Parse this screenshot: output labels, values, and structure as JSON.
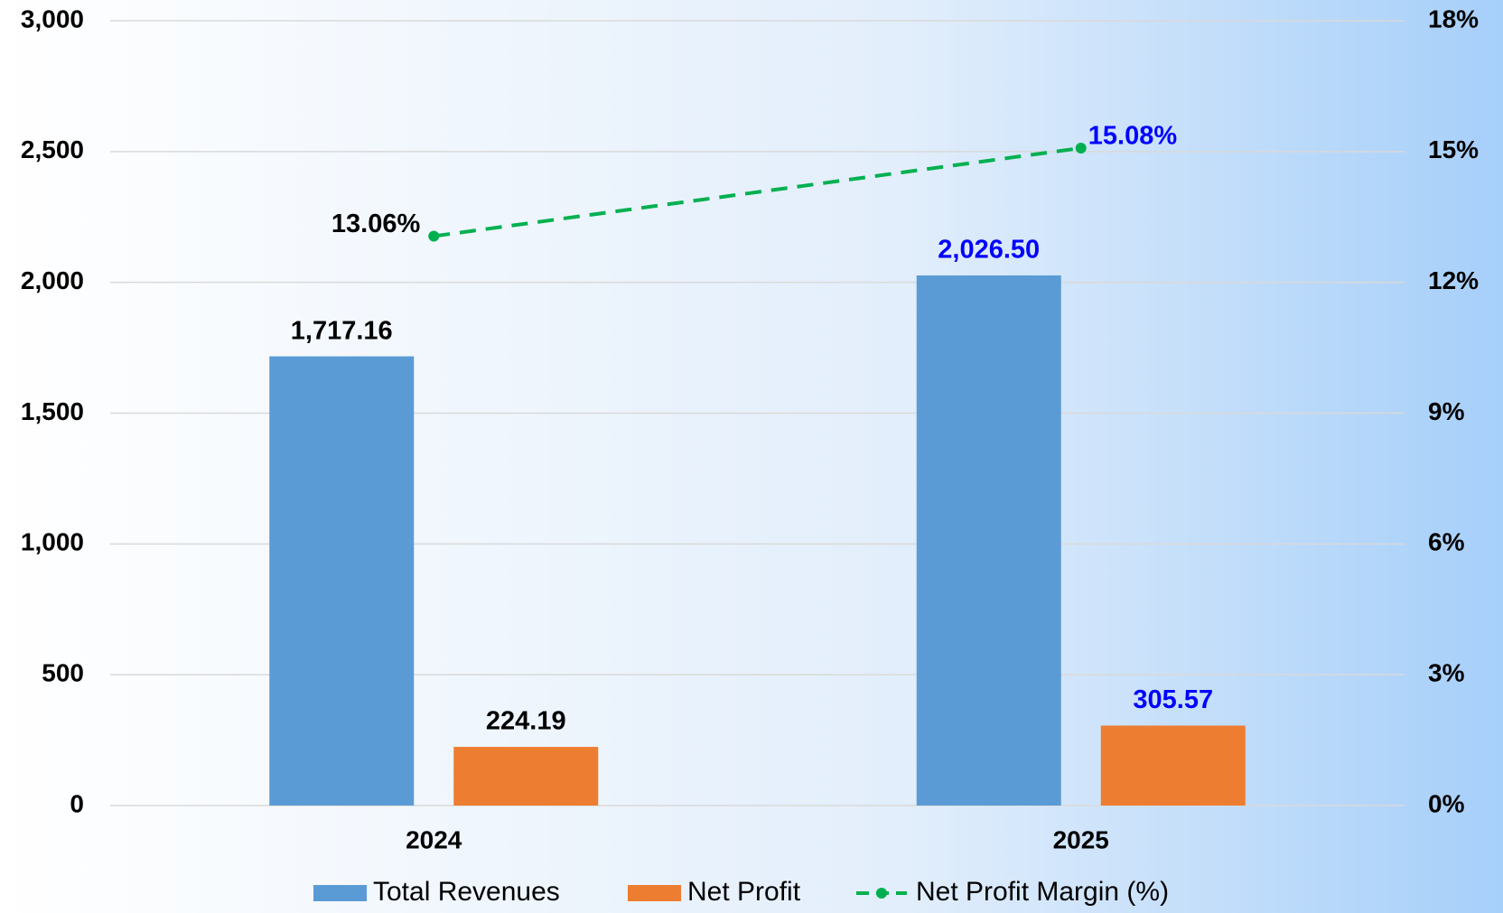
{
  "chart_data": {
    "type": "bar",
    "categories": [
      "2024",
      "2025"
    ],
    "series": [
      {
        "name": "Total Revenues",
        "color": "#5b9bd5",
        "values": [
          1717.16,
          2026.5
        ],
        "value_labels": [
          "1,717.16",
          "2,026.50"
        ]
      },
      {
        "name": "Net Profit",
        "color": "#ed7d31",
        "values": [
          224.19,
          305.57
        ],
        "value_labels": [
          "224.19",
          "305.57"
        ]
      },
      {
        "name": "Net Profit Margin (%)",
        "type": "line",
        "axis": "y2",
        "color": "#00b050",
        "dashed": true,
        "values": [
          13.06,
          15.08
        ],
        "value_labels": [
          "13.06%",
          "15.08%"
        ]
      }
    ],
    "value_label_colors": [
      "#000000",
      "#0000ff"
    ],
    "ylim": [
      0,
      3000
    ],
    "yticks": [
      0,
      500,
      {
        "value": 1000,
        "label": "1,000"
      },
      {
        "value": 1500,
        "label": "1,500"
      },
      {
        "value": 2000,
        "label": "2,000"
      },
      {
        "value": 2500,
        "label": "2,500"
      },
      {
        "value": 3000,
        "label": "3,000"
      }
    ],
    "y2lim": [
      0,
      18
    ],
    "y2ticks": [
      {
        "value": 0,
        "label": "0%"
      },
      {
        "value": 3,
        "label": "3%"
      },
      {
        "value": 6,
        "label": "6%"
      },
      {
        "value": 9,
        "label": "9%"
      },
      {
        "value": 12,
        "label": "12%"
      },
      {
        "value": 15,
        "label": "15%"
      },
      {
        "value": 18,
        "label": "18%"
      }
    ],
    "grid": true,
    "legend": "bottom"
  }
}
